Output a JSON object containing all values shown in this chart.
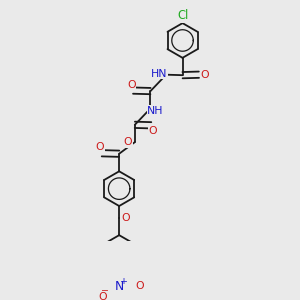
{
  "bg_color": "#eaeaea",
  "bond_color": "#1a1a1a",
  "bw": 1.3,
  "dbo": 0.013,
  "atom_colors": {
    "N": "#1a1acc",
    "O": "#cc1a1a",
    "Cl": "#22aa22",
    "C": "#1a1a1a"
  },
  "fs": 7.8,
  "rr": 0.072,
  "xlim": [
    0,
    1
  ],
  "ylim": [
    0,
    1
  ]
}
